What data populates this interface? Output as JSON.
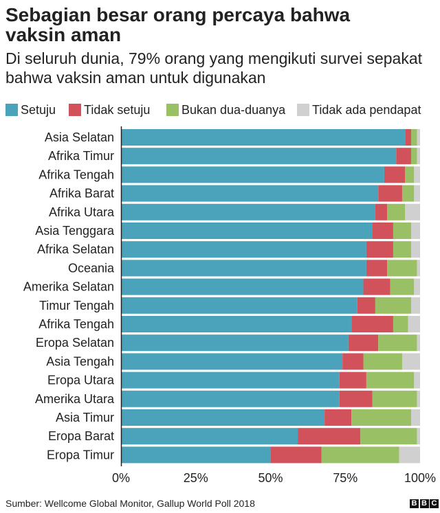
{
  "title": "Sebagian besar orang percaya bahwa vaksin aman",
  "subtitle": "Di seluruh dunia, 79% orang yang mengikuti survei sepakat bahwa vaksin aman untuk digunakan",
  "source": "Sumber: Wellcome Global Monitor, Gallup World Poll 2018",
  "logo": {
    "letters": [
      "B",
      "B",
      "C"
    ]
  },
  "chart_data": {
    "type": "bar",
    "orientation": "horizontal",
    "stacked": true,
    "legend_position": "top",
    "grid": false,
    "xlim": [
      0,
      100
    ],
    "x_ticks": [
      "0%",
      "25%",
      "50%",
      "75%",
      "100%"
    ],
    "categories": [
      "Asia Selatan",
      "Afrika Timur",
      "Afrika Tengah",
      "Afrika Barat",
      "Afrika Utara",
      "Asia Tenggara",
      "Afrika Selatan",
      "Oceania",
      "Amerika Selatan",
      "Timur Tengah",
      "Afrika Tengah",
      "Eropa Selatan",
      "Asia Tengah",
      "Eropa Utara",
      "Amerika Utara",
      "Asia Timur",
      "Eropa Barat",
      "Eropa Timur"
    ],
    "series": [
      {
        "name": "Setuju",
        "color": "#4aa3ba",
        "values": [
          95,
          92,
          88,
          86,
          85,
          84,
          82,
          82,
          81,
          79,
          77,
          76,
          74,
          73,
          73,
          68,
          59,
          50
        ]
      },
      {
        "name": "Tidak setuju",
        "color": "#d2525c",
        "values": [
          2,
          5,
          7,
          8,
          4,
          7,
          9,
          7,
          9,
          6,
          14,
          10,
          7,
          9,
          11,
          9,
          21,
          17
        ]
      },
      {
        "name": "Bukan dua-duanya",
        "color": "#99c064",
        "values": [
          2,
          2,
          3,
          4,
          6,
          6,
          6,
          10,
          8,
          12,
          5,
          13,
          13,
          16,
          15,
          20,
          19,
          26
        ]
      },
      {
        "name": "Tidak ada pendapat",
        "color": "#d0d0d0",
        "values": [
          1,
          1,
          2,
          2,
          5,
          3,
          3,
          1,
          2,
          3,
          4,
          1,
          6,
          2,
          1,
          3,
          1,
          7
        ]
      }
    ]
  }
}
